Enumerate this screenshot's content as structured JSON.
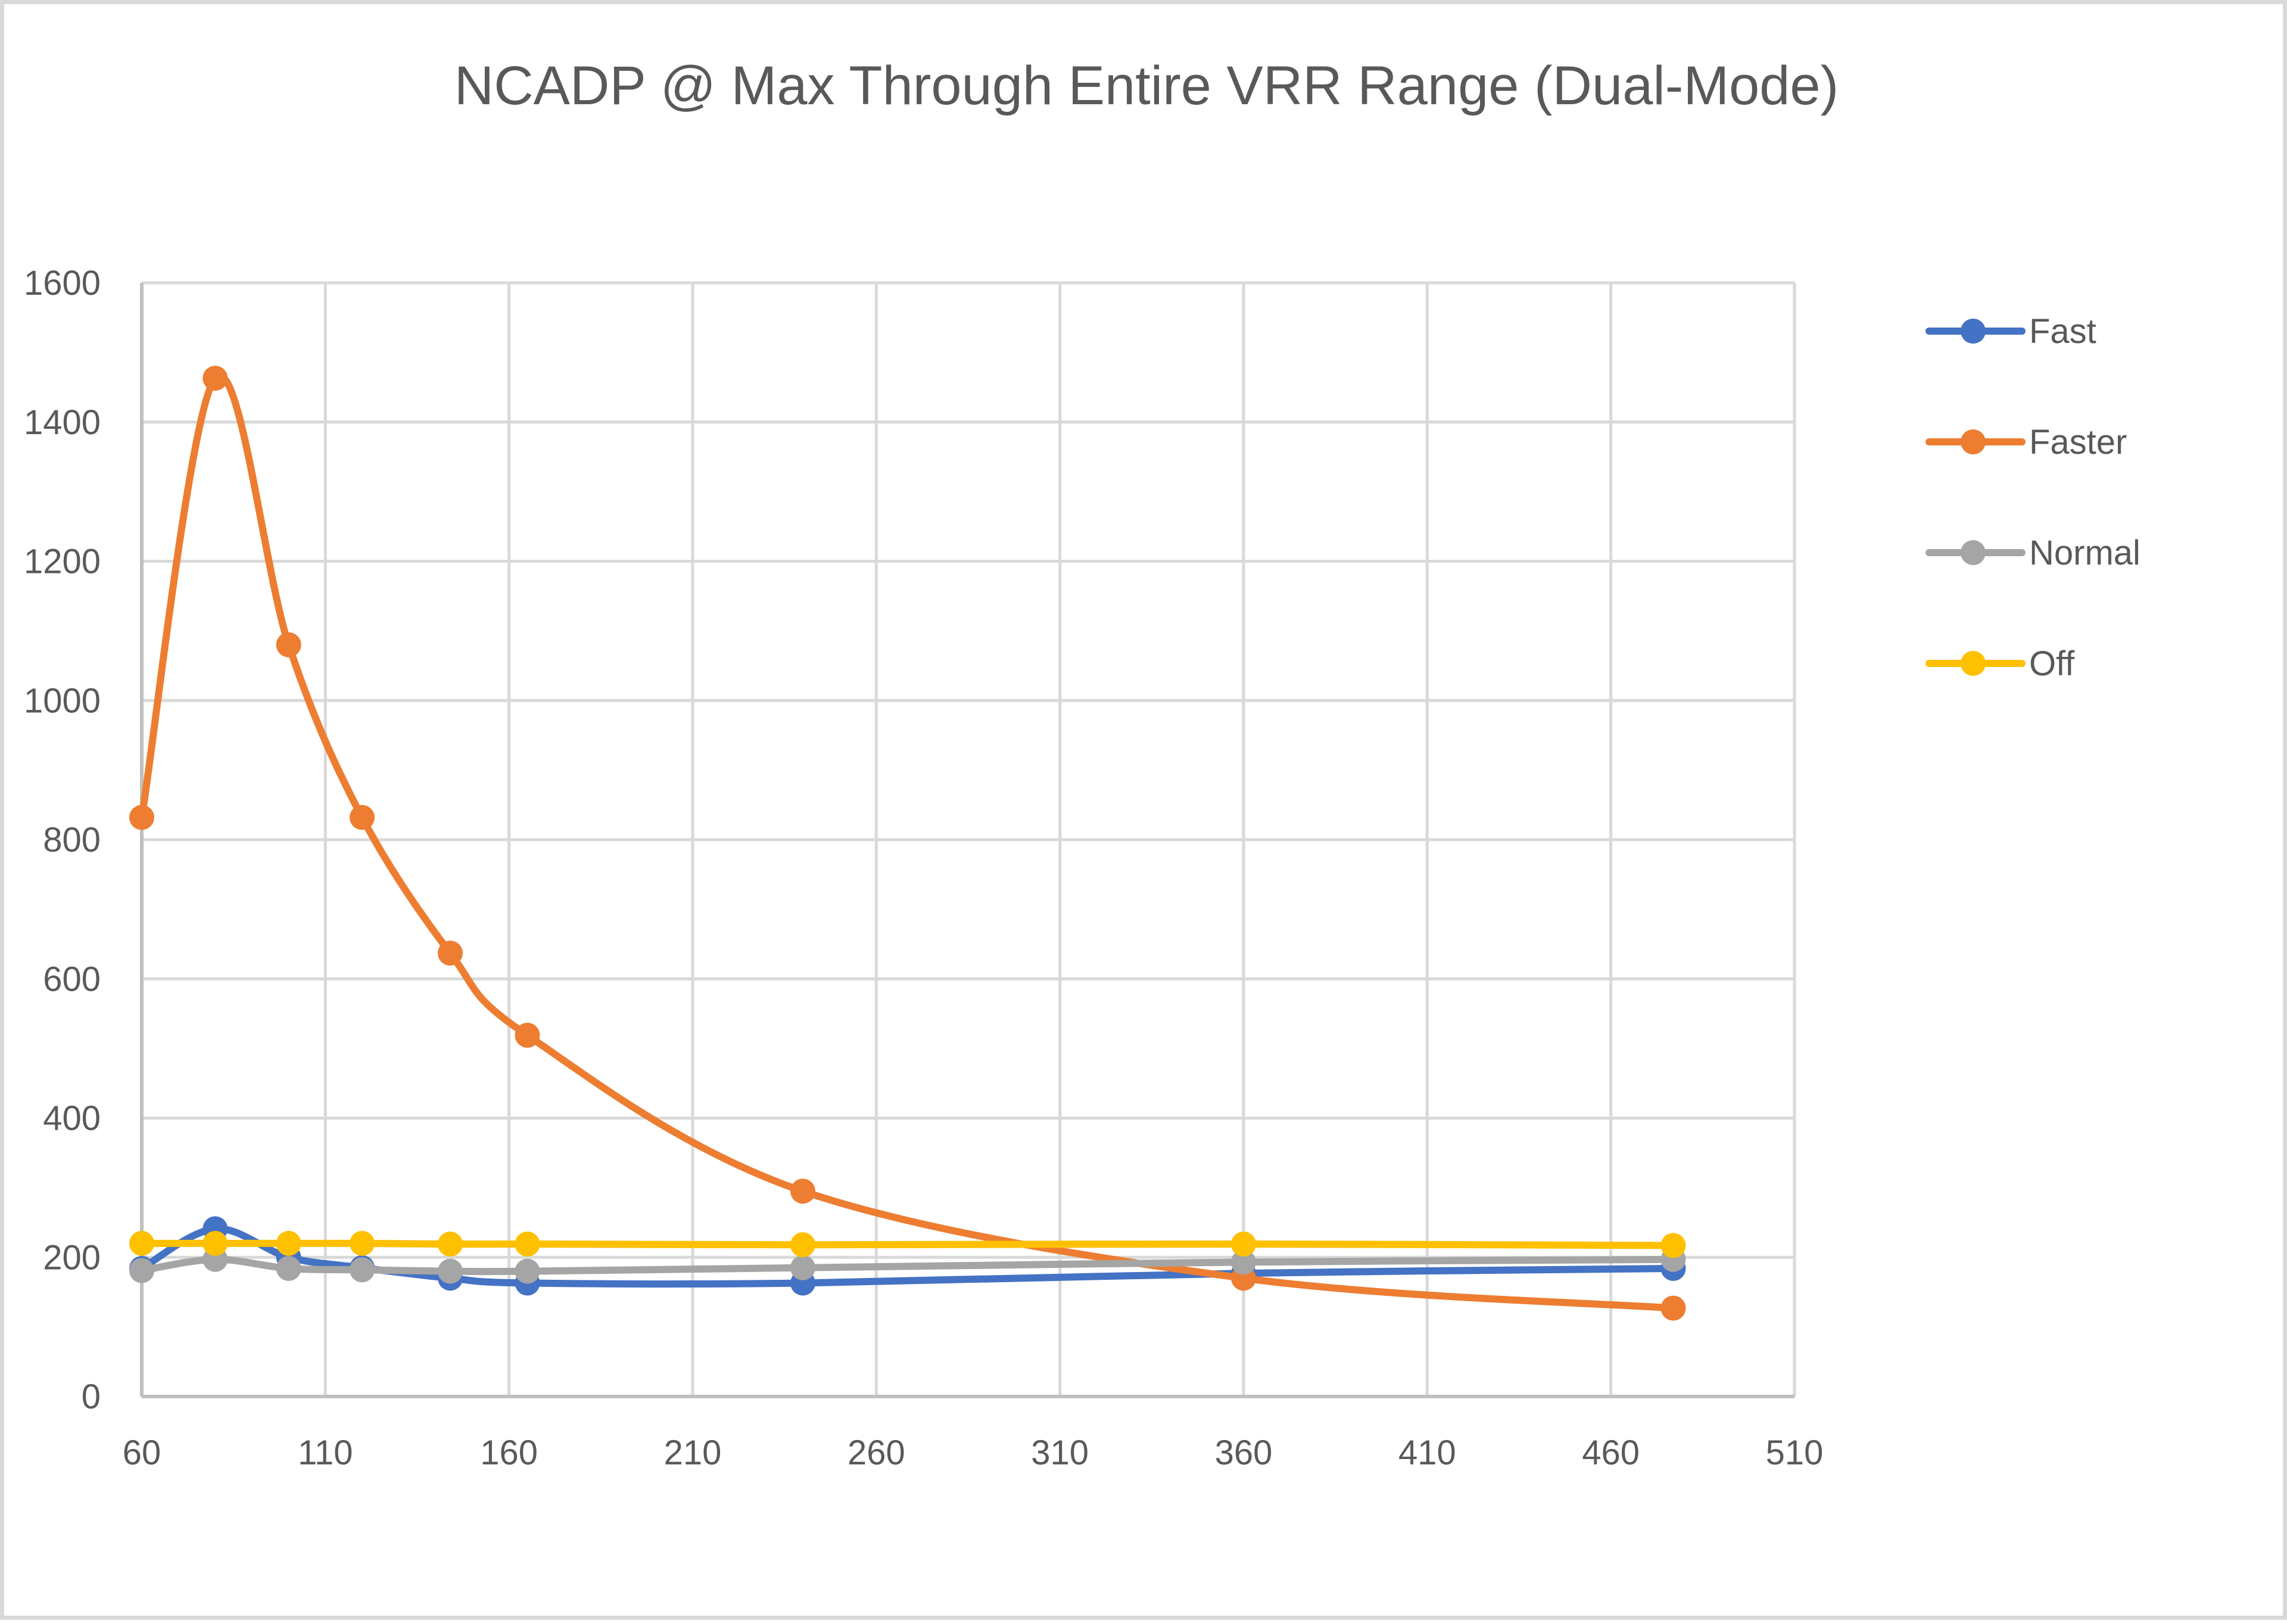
{
  "chart_data": {
    "type": "line",
    "title": "NCADP @ Max Through Entire VRR Range (Dual-Mode)",
    "xlabel": "",
    "ylabel": "",
    "xlim": [
      60,
      510
    ],
    "ylim": [
      0,
      1600
    ],
    "x_ticks": [
      60,
      110,
      160,
      210,
      260,
      310,
      360,
      410,
      460,
      510
    ],
    "y_ticks": [
      0,
      200,
      400,
      600,
      800,
      1000,
      1200,
      1400,
      1600
    ],
    "grid": true,
    "smooth": true,
    "legend_position": "right",
    "x": [
      60,
      80,
      100,
      120,
      144,
      165,
      240,
      360,
      477
    ],
    "series": [
      {
        "name": "Fast",
        "color": "#4472C4",
        "values": [
          184,
          241,
          200,
          185,
          170,
          163,
          163,
          177,
          184
        ]
      },
      {
        "name": "Faster",
        "color": "#ED7D31",
        "values": [
          832,
          1463,
          1080,
          832,
          637,
          519,
          295,
          170,
          127
        ]
      },
      {
        "name": "Normal",
        "color": "#A5A5A5",
        "values": [
          181,
          197,
          184,
          182,
          180,
          180,
          185,
          193,
          197
        ]
      },
      {
        "name": "Off",
        "color": "#FFC000",
        "values": [
          220,
          220,
          220,
          220,
          219,
          219,
          218,
          219,
          217
        ]
      }
    ]
  }
}
